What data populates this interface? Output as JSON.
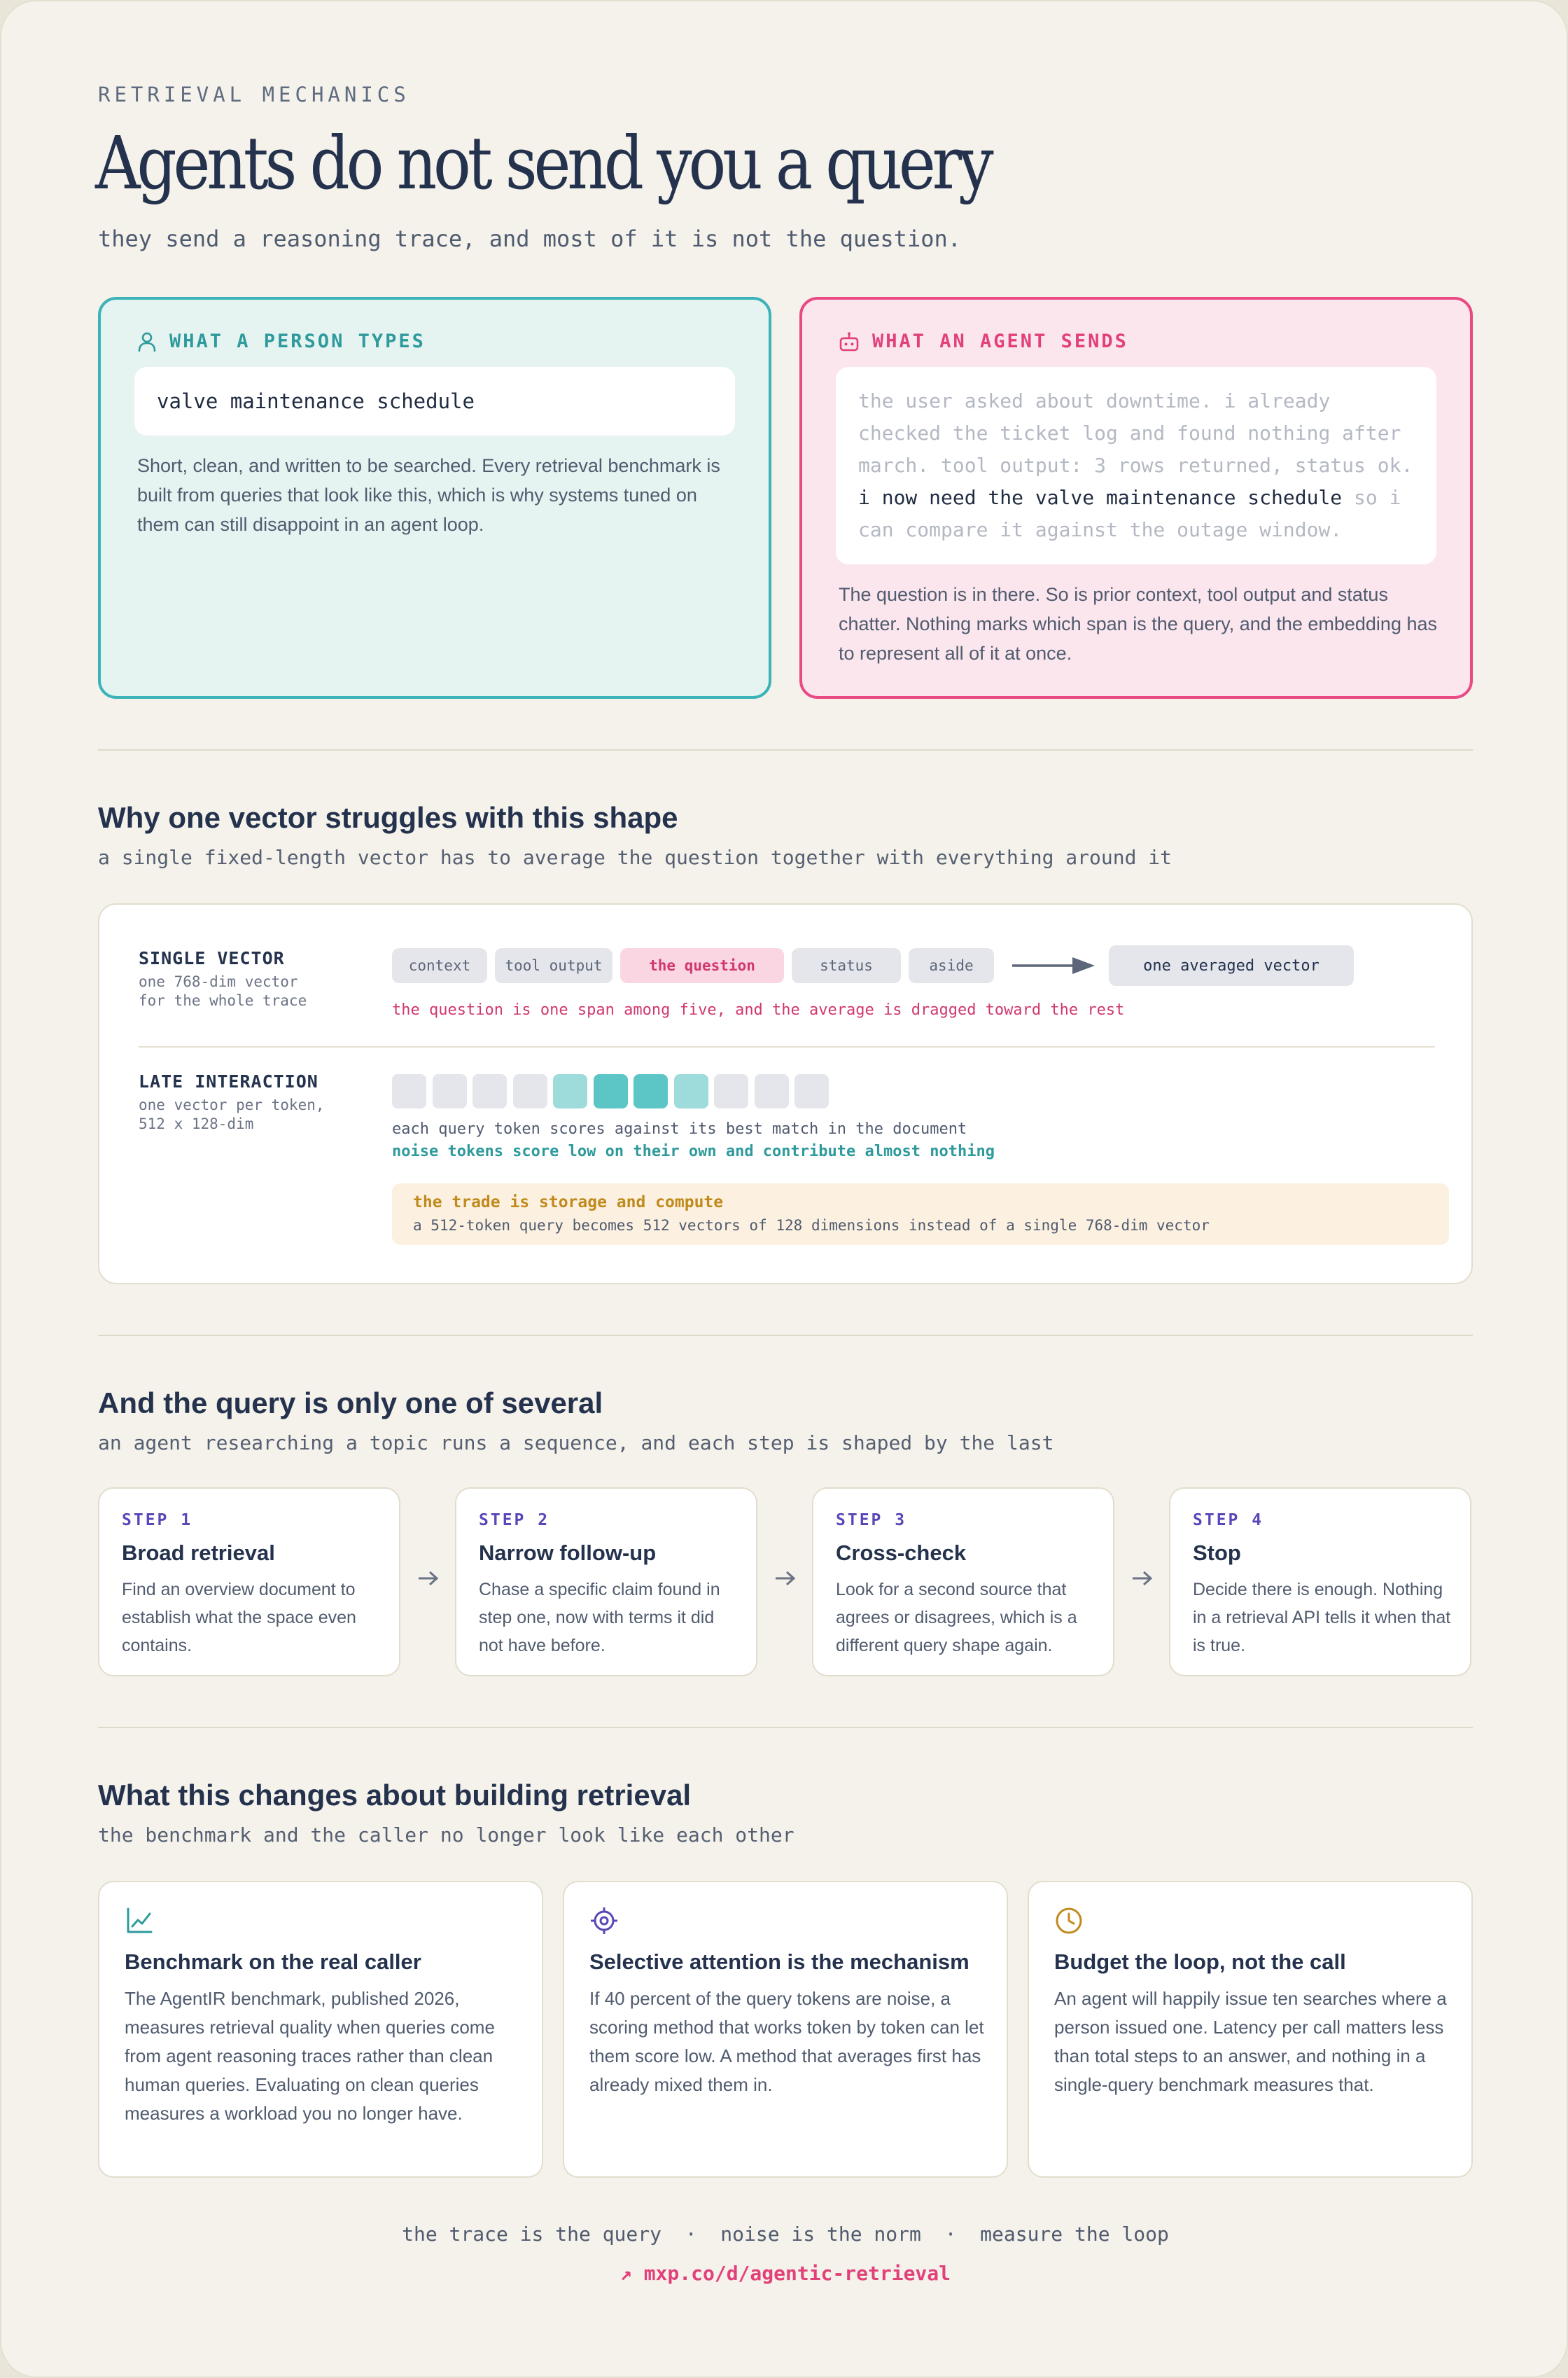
{
  "header": {
    "eyebrow": "RETRIEVAL MECHANICS",
    "title": "Agents do not send you a query",
    "subtitle": "they send a reasoning trace, and most of it is not the question."
  },
  "compare": {
    "person": {
      "label": "WHAT A PERSON TYPES",
      "icon": "person-icon",
      "query": "valve maintenance schedule",
      "description": "Short, clean, and written to be searched. Every retrieval benchmark is built from queries that look like this, which is why systems tuned on them can still disappoint in an agent loop."
    },
    "agent": {
      "label": "WHAT AN AGENT SENDS",
      "icon": "robot-icon",
      "trace_before": "the user asked about downtime. i already checked the ticket log and found nothing after march. tool output: 3 rows returned, status ok. ",
      "trace_question": "i now need the valve maintenance schedule",
      "trace_after": " so i can compare it against the outage window.",
      "description": "The question is in there. So is prior context, tool output and status chatter. Nothing marks which span is the query, and the embedding has to represent all of it at once."
    }
  },
  "vector_section": {
    "title": "Why one vector struggles with this shape",
    "subtitle": "a single fixed-length vector has to average the question together with everything around it",
    "single": {
      "label": "SINGLE VECTOR",
      "desc_line1": "one 768-dim vector",
      "desc_line2": "for the whole trace",
      "chips": [
        "context",
        "tool output",
        "the question",
        "status",
        "aside"
      ],
      "output": "one averaged vector",
      "note": "the question is one span among five, and the average is dragged toward the rest"
    },
    "late": {
      "label": "LATE INTERACTION",
      "desc_line1": "one vector per token,",
      "desc_line2": "512 x 128-dim",
      "token_scores": [
        "low",
        "low",
        "low",
        "low",
        "mid",
        "high",
        "high",
        "mid",
        "low",
        "low",
        "low"
      ],
      "note1": "each query token scores against its best match in the document",
      "note2": "noise tokens score low on their own and contribute almost nothing",
      "trade_title": "the trade is storage and compute",
      "trade_desc": "a 512-token query becomes 512 vectors of 128 dimensions instead of a single 768-dim vector"
    }
  },
  "steps_section": {
    "title": "And the query is only one of several",
    "subtitle": "an agent researching a topic runs a sequence, and each step is shaped by the last",
    "steps": [
      {
        "num": "STEP 1",
        "title": "Broad retrieval",
        "desc": "Find an overview document to establish what the space even contains."
      },
      {
        "num": "STEP 2",
        "title": "Narrow follow-up",
        "desc": "Chase a specific claim found in step one, now with terms it did not have before."
      },
      {
        "num": "STEP 3",
        "title": "Cross-check",
        "desc": "Look for a second source that agrees or disagrees, which is a different query shape again."
      },
      {
        "num": "STEP 4",
        "title": "Stop",
        "desc": "Decide there is enough. Nothing in a retrieval API tells it when that is true."
      }
    ]
  },
  "changes_section": {
    "title": "What this changes about building retrieval",
    "subtitle": "the benchmark and the caller no longer look like each other",
    "cards": [
      {
        "icon": "chart-icon",
        "title": "Benchmark on the real caller",
        "desc": "The AgentIR benchmark, published 2026, measures retrieval quality when queries come from agent reasoning traces rather than clean human queries. Evaluating on clean queries measures a workload you no longer have."
      },
      {
        "icon": "target-icon",
        "title": "Selective attention is the mechanism",
        "desc": "If 40 percent of the query tokens are noise, a scoring method that works token by token can let them score low. A method that averages first has already mixed them in."
      },
      {
        "icon": "clock-icon",
        "title": "Budget the loop, not the call",
        "desc": "An agent will happily issue ten searches where a person issued one. Latency per call matters less than total steps to an answer, and nothing in a single-query benchmark measures that."
      }
    ]
  },
  "footer": {
    "line": "the trace is the query  ·  noise is the norm  ·  measure the loop",
    "link": "↗ mxp.co/d/agentic-retrieval"
  },
  "colors": {
    "teal": "#3cb3b8",
    "pink": "#e94a83",
    "purple": "#5a46b8",
    "amber": "#c08a1c",
    "navy": "#24324d"
  }
}
